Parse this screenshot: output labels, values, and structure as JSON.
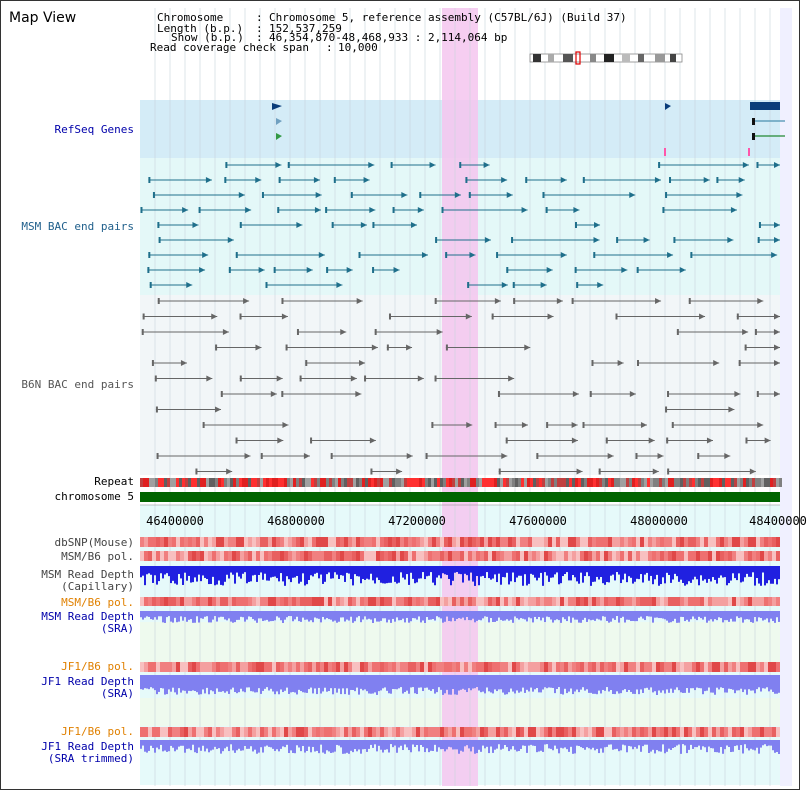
{
  "header": {
    "title": "Map View",
    "chromosome_label": "Chromosome",
    "chromosome_value": "Chromosome 5, reference assembly (C57BL/6J) (Build 37)",
    "length_label": "Length (b.p.)",
    "length_value": "152,537,259",
    "show_label": "Show (b.p.)",
    "show_value": "46,354,870-48,468,933 : 2,114,064 bp",
    "coverage_label": "Read coverage check span",
    "coverage_value": "10,000"
  },
  "tracks": {
    "refseq": "RefSeq Genes",
    "msm_bac": "MSM BAC end pairs",
    "b6n_bac": "B6N BAC end pairs",
    "repeat": "Repeat",
    "chromosome": "chromosome 5",
    "dbsnp": "dbSNP(Mouse)",
    "msm_b6_pol": "MSM/B6 pol.",
    "msm_depth_cap_1": "MSM Read Depth",
    "msm_depth_cap_2": "(Capillary)",
    "msm_b6_pol_sra": "MSM/B6 pol.",
    "msm_depth_sra_1": "MSM Read Depth",
    "msm_depth_sra_2": "(SRA)",
    "jf1_b6_pol": "JF1/B6 pol.",
    "jf1_depth_sra_1": "JF1 Read Depth",
    "jf1_depth_sra_2": "(SRA)",
    "jf1_b6_pol_2": "JF1/B6 pol.",
    "jf1_depth_trim_1": "JF1 Read Depth",
    "jf1_depth_trim_2": "(SRA trimmed)"
  },
  "axis": {
    "ticks": [
      "46400000",
      "46800000",
      "47200000",
      "47600000",
      "48000000",
      "48400000"
    ]
  },
  "colors": {
    "gene_blue": "#0a3d7a",
    "msm_teal": "#1f6f8b",
    "b6n_gray": "#666666",
    "chromosome_green": "#006400",
    "depth_blue": "#2020e0",
    "depth_light": "#8080f0",
    "highlight": "#f4c6ee",
    "label_blue": "#0000aa",
    "label_orange": "#e08000"
  }
}
